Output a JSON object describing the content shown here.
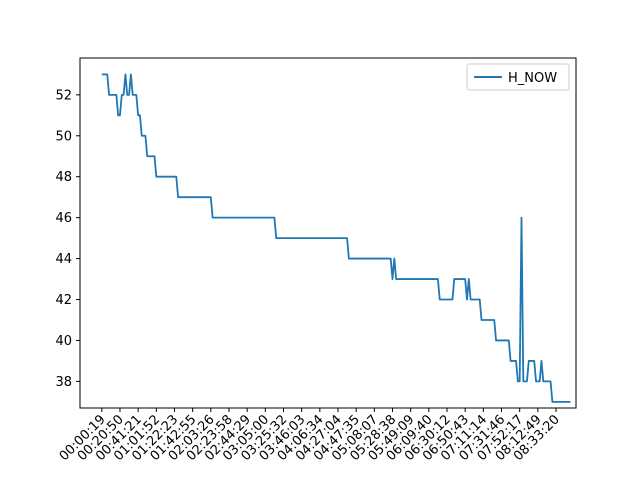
{
  "chart_data": {
    "type": "line",
    "title": "",
    "xlabel": "",
    "ylabel": "",
    "x_tick_labels": [
      "00:00:19",
      "00:20:50",
      "00:41:21",
      "01:01:52",
      "01:22:23",
      "01:42:55",
      "02:03:26",
      "02:23:58",
      "02:44:29",
      "03:05:00",
      "03:25:32",
      "03:46:03",
      "04:06:34",
      "04:27:04",
      "04:47:35",
      "05:08:07",
      "05:28:38",
      "05:49:09",
      "06:09:40",
      "06:30:12",
      "06:50:43",
      "07:11:14",
      "07:31:46",
      "07:52:17",
      "08:12:49",
      "08:33:20"
    ],
    "xlim_index": [
      -1.2,
      26.1
    ],
    "ylim": [
      36.7,
      53.8
    ],
    "y_ticks": [
      38,
      40,
      42,
      44,
      46,
      48,
      50,
      52
    ],
    "grid": false,
    "legend_position": "upper-right",
    "series": [
      {
        "name": "H_NOW",
        "color": "#1f77b4",
        "points": [
          [
            0.0,
            53
          ],
          [
            0.3,
            53
          ],
          [
            0.4,
            52
          ],
          [
            0.8,
            52
          ],
          [
            0.9,
            51
          ],
          [
            1.0,
            51
          ],
          [
            1.1,
            52
          ],
          [
            1.2,
            52
          ],
          [
            1.3,
            53
          ],
          [
            1.4,
            52
          ],
          [
            1.5,
            52
          ],
          [
            1.6,
            53
          ],
          [
            1.7,
            52
          ],
          [
            1.9,
            52
          ],
          [
            2.0,
            51
          ],
          [
            2.1,
            51
          ],
          [
            2.2,
            50
          ],
          [
            2.4,
            50
          ],
          [
            2.5,
            49
          ],
          [
            2.9,
            49
          ],
          [
            3.0,
            48
          ],
          [
            4.1,
            48
          ],
          [
            4.2,
            47
          ],
          [
            6.0,
            47
          ],
          [
            6.1,
            46
          ],
          [
            9.5,
            46
          ],
          [
            9.6,
            45
          ],
          [
            13.5,
            45
          ],
          [
            13.6,
            44
          ],
          [
            15.9,
            44
          ],
          [
            16.0,
            43
          ],
          [
            16.1,
            44
          ],
          [
            16.2,
            43
          ],
          [
            18.5,
            43
          ],
          [
            18.6,
            42
          ],
          [
            19.3,
            42
          ],
          [
            19.4,
            43
          ],
          [
            20.0,
            43
          ],
          [
            20.1,
            42
          ],
          [
            20.2,
            43
          ],
          [
            20.3,
            42
          ],
          [
            20.8,
            42
          ],
          [
            20.9,
            41
          ],
          [
            21.6,
            41
          ],
          [
            21.7,
            40
          ],
          [
            22.4,
            40
          ],
          [
            22.5,
            39
          ],
          [
            22.8,
            39
          ],
          [
            22.9,
            38
          ],
          [
            23.0,
            38
          ],
          [
            23.1,
            46
          ],
          [
            23.2,
            38
          ],
          [
            23.4,
            38
          ],
          [
            23.5,
            39
          ],
          [
            23.8,
            39
          ],
          [
            23.9,
            38
          ],
          [
            24.1,
            38
          ],
          [
            24.2,
            39
          ],
          [
            24.3,
            38
          ],
          [
            24.7,
            38
          ],
          [
            24.8,
            37
          ],
          [
            25.8,
            37
          ]
        ]
      }
    ]
  }
}
